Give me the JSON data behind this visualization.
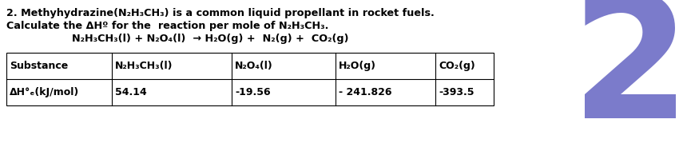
{
  "bg_color": "#ffffff",
  "text_color": "#000000",
  "number_color": "#7b7bcb",
  "line1": "2. Methyhydrazine(N₂H₃CH₃) is a common liquid propellant in rocket fuels.",
  "line2": "Calculate the ΔHº for the  reaction per mole of N₂H₃CH₃.",
  "line3": "N₂H₃CH₃(l) + N₂O₄(l)  → H₂O(g) +  N₂(g) +  CO₂(g)",
  "table_headers": [
    "Substance",
    "N₂H₃CH₃(l)",
    "N₂O₄(l)",
    "H₂O(g)",
    "CO₂(g)"
  ],
  "table_values": [
    "ΔH°ₑ(kJ/mol)",
    "54.14",
    "-19.56",
    "- 241.826",
    "-393.5"
  ],
  "fontsize_text": 9.2,
  "fontsize_table": 9.0,
  "big_number": "2",
  "big_number_fontsize": 155
}
